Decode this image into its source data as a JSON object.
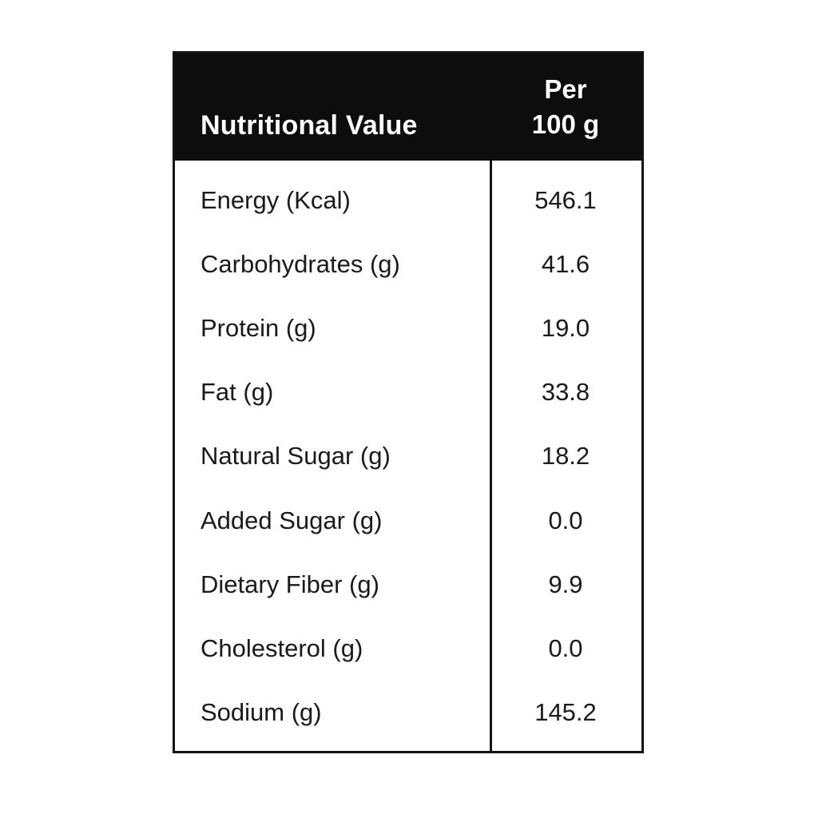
{
  "table": {
    "header": {
      "title": "Nutritional Value",
      "per_line1": "Per",
      "per_line2": "100 g"
    },
    "rows": [
      {
        "label": "Energy (Kcal)",
        "value": "546.1"
      },
      {
        "label": "Carbohydrates (g)",
        "value": "41.6"
      },
      {
        "label": "Protein (g)",
        "value": "19.0"
      },
      {
        "label": "Fat (g)",
        "value": "33.8"
      },
      {
        "label": "Natural Sugar (g)",
        "value": "18.2"
      },
      {
        "label": "Added Sugar (g)",
        "value": "0.0"
      },
      {
        "label": "Dietary Fiber (g)",
        "value": "9.9"
      },
      {
        "label": "Cholesterol (g)",
        "value": "0.0"
      },
      {
        "label": "Sodium (g)",
        "value": "145.2"
      }
    ]
  },
  "colors": {
    "header_bg": "#0d0d0d",
    "header_text": "#ffffff",
    "body_text": "#1a1a1a",
    "border": "#141414",
    "background": "#ffffff"
  }
}
